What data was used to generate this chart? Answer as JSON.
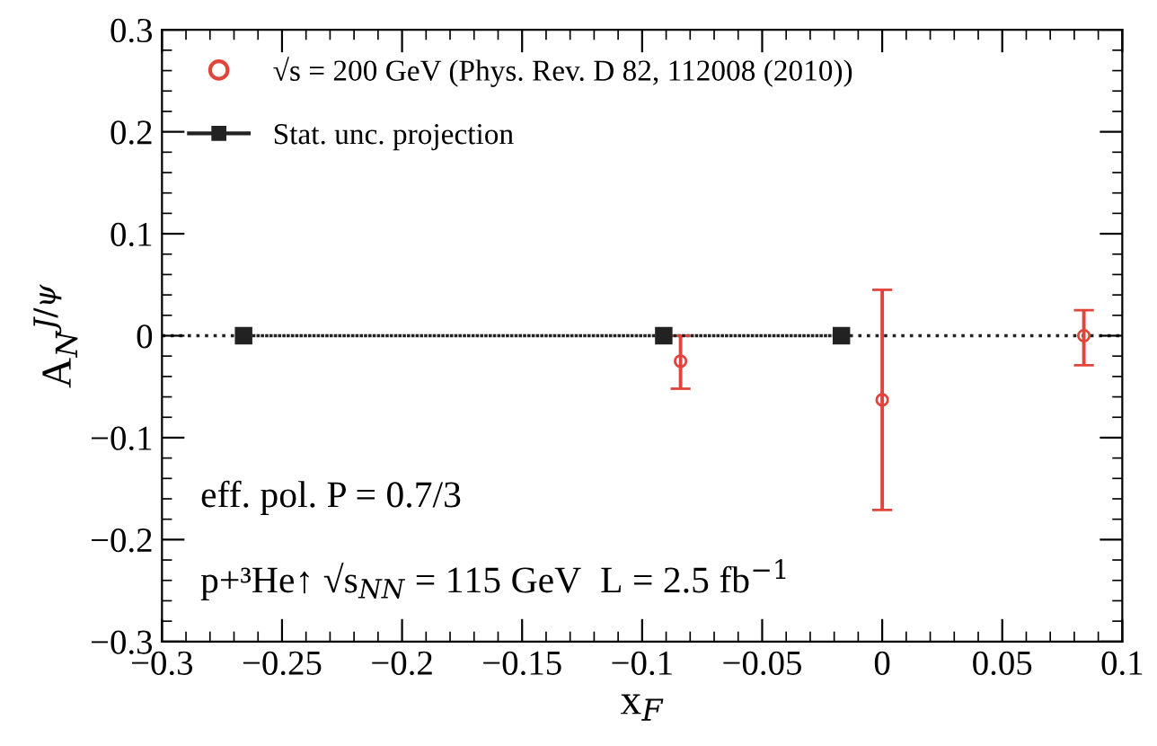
{
  "chart_data": {
    "type": "scatter",
    "xlabel": "x$_{F}$",
    "ylabel": "A$_{N}$$^{J/ψ}$",
    "xlim": [
      -0.3,
      0.1
    ],
    "xticks": [
      {
        "value": -0.3,
        "label": "−0.3"
      },
      {
        "value": -0.25,
        "label": "−0.25"
      },
      {
        "value": -0.2,
        "label": "−0.2"
      },
      {
        "value": -0.15,
        "label": "−0.15"
      },
      {
        "value": -0.1,
        "label": "−0.1"
      },
      {
        "value": -0.05,
        "label": "−0.05"
      },
      0,
      0.05,
      0.1
    ],
    "ylim": [
      -0.3,
      0.3
    ],
    "yticks": [
      {
        "value": -0.3,
        "label": "−0.3"
      },
      {
        "value": -0.2,
        "label": "−0.2"
      },
      {
        "value": -0.1,
        "label": "−0.1"
      },
      0,
      0.1,
      0.2,
      0.3
    ],
    "grid": false,
    "legend": "top left",
    "series": [
      {
        "name": "√s = 200 GeV (Phys. Rev. D 82, 112008 (2010))",
        "color": "#e0453c",
        "marker": "circle",
        "x": [
          -0.084,
          0.0,
          0.084
        ],
        "values": [
          -0.025,
          -0.063,
          0.0
        ],
        "errors": [
          [
            -0.052,
            0.0
          ],
          [
            -0.171,
            0.045
          ],
          [
            -0.029,
            0.025
          ]
        ]
      },
      {
        "name": "Stat. unc. projection",
        "type": "line",
        "color": "#222222",
        "marker": "square",
        "line_style": "dotted",
        "x": [
          -0.266,
          -0.091,
          -0.017
        ],
        "values": [
          0,
          0,
          0
        ]
      }
    ],
    "ref_lines": [
      {
        "axis": "y",
        "value": 0,
        "color": "#222222",
        "line_style": "dotted"
      }
    ],
    "annotations": [
      "eff. pol. P = 0.7/3",
      "p+³He↑ √s$_{NN}$ = 115 GeV  L = 2.5 fb$^{−1}$"
    ]
  }
}
